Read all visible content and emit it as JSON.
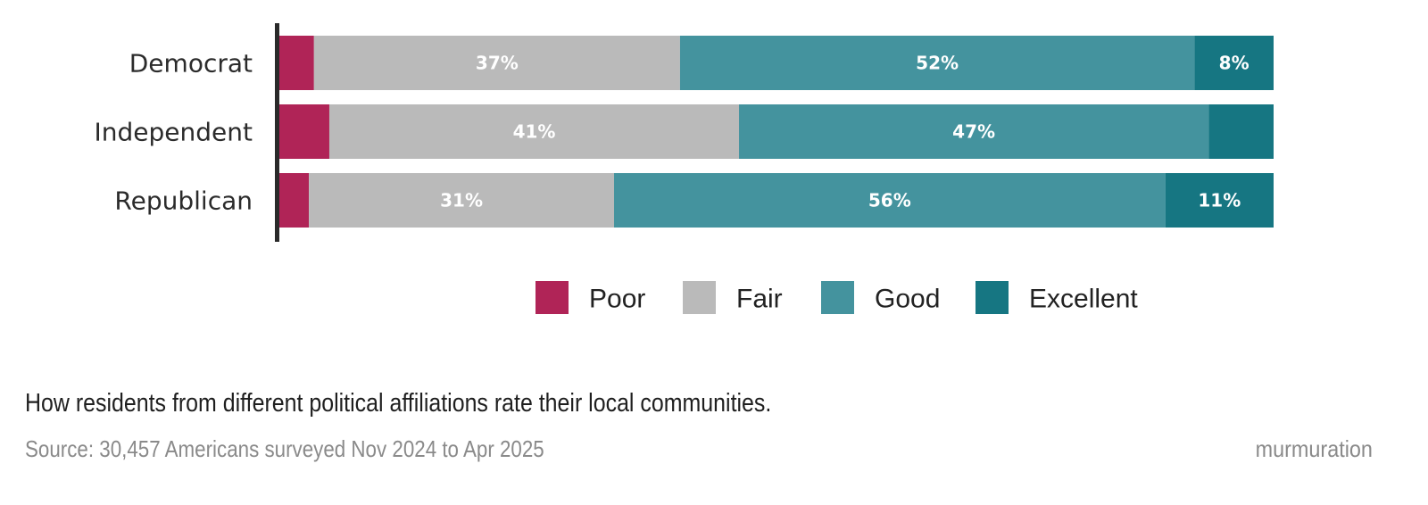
{
  "chart_data": {
    "type": "bar",
    "orientation": "horizontal",
    "stacked": true,
    "normalized": true,
    "categories": [
      "Democrat",
      "Independent",
      "Republican"
    ],
    "series": [
      {
        "name": "Poor",
        "color": "#b02457",
        "values": [
          3.5,
          5,
          3
        ],
        "labels": [
          "",
          "",
          ""
        ]
      },
      {
        "name": "Fair",
        "color": "#bababa",
        "values": [
          37,
          41,
          31
        ],
        "labels": [
          "37%",
          "41%",
          "31%"
        ]
      },
      {
        "name": "Good",
        "color": "#44939e",
        "values": [
          52,
          47,
          56
        ],
        "labels": [
          "52%",
          "47%",
          "56%"
        ]
      },
      {
        "name": "Excellent",
        "color": "#167682",
        "values": [
          8,
          6.5,
          11
        ],
        "labels": [
          "8%",
          "",
          "11%"
        ]
      }
    ],
    "legend": {
      "position": "bottom"
    },
    "xlim": [
      0,
      100
    ]
  },
  "caption": "How residents from different political affiliations rate their local communities.",
  "source": "Source: 30,457 Americans surveyed Nov 2024 to Apr 2025",
  "brand": "murmuration"
}
